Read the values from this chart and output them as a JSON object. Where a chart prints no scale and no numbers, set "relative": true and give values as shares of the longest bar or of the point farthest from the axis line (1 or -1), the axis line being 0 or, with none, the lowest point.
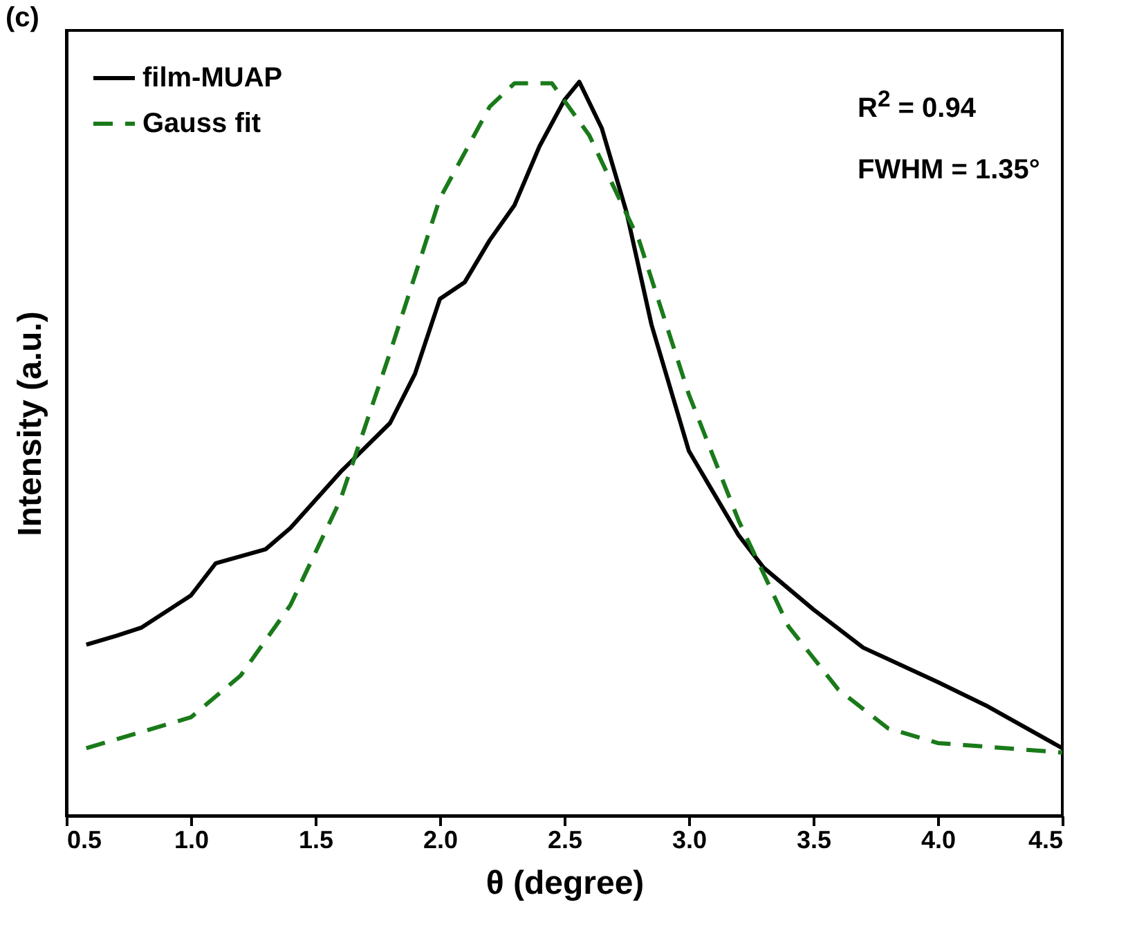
{
  "chart_data": {
    "type": "line",
    "relative": true,
    "xlabel": "θ (degree)",
    "ylabel": "Intensity (a.u.)",
    "xlim": [
      0.5,
      4.5
    ],
    "xticks": [
      {
        "value": 0.5,
        "label": "0.5"
      },
      {
        "value": 1,
        "label": "1.0"
      },
      {
        "value": 1.5,
        "label": "1.5"
      },
      {
        "value": 2,
        "label": "2.0"
      },
      {
        "value": 2.5,
        "label": "2.5"
      },
      {
        "value": 3,
        "label": "3.0"
      },
      {
        "value": 3.5,
        "label": "3.5"
      },
      {
        "value": 4,
        "label": "4.0"
      },
      {
        "value": 4.5,
        "label": "4.5"
      }
    ],
    "legend": "top left",
    "annotations": [
      "(c)",
      "R$^{2}$ = 0.94",
      "FWHM = 1.35°"
    ],
    "series": [
      {
        "name": "film-MUAP",
        "color": "#000000",
        "line_style": "solid",
        "x": [
          0.58,
          0.7,
          0.8,
          1.0,
          1.1,
          1.3,
          1.4,
          1.6,
          1.8,
          1.9,
          2.0,
          2.1,
          2.2,
          2.3,
          2.4,
          2.5,
          2.56,
          2.65,
          2.75,
          2.85,
          3.0,
          3.2,
          3.3,
          3.5,
          3.7,
          4.0,
          4.2,
          4.5
        ],
        "values": [
          0.233,
          0.245,
          0.256,
          0.3,
          0.344,
          0.363,
          0.392,
          0.468,
          0.535,
          0.602,
          0.704,
          0.727,
          0.784,
          0.832,
          0.912,
          0.975,
          1.0,
          0.937,
          0.822,
          0.669,
          0.497,
          0.382,
          0.338,
          0.281,
          0.229,
          0.182,
          0.149,
          0.092
        ]
      },
      {
        "name": "Gauss fit",
        "color": "#1a7a1a",
        "line_style": "dashed",
        "x": [
          0.58,
          1.0,
          1.2,
          1.4,
          1.6,
          1.8,
          2.0,
          2.2,
          2.3,
          2.45,
          2.6,
          2.8,
          3.0,
          3.2,
          3.4,
          3.6,
          3.8,
          4.0,
          4.5
        ],
        "values": [
          0.092,
          0.134,
          0.191,
          0.287,
          0.43,
          0.631,
          0.841,
          0.966,
          0.998,
          0.998,
          0.927,
          0.784,
          0.574,
          0.402,
          0.258,
          0.172,
          0.119,
          0.099,
          0.086
        ]
      }
    ]
  }
}
